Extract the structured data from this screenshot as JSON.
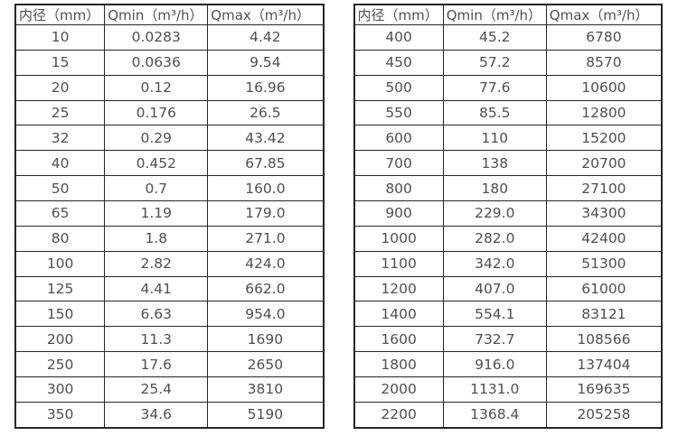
{
  "colors": {
    "background": "#ffffff",
    "border": "#262626",
    "text": "#4f4f4f"
  },
  "tables": [
    {
      "name": "small-diameters",
      "headers": [
        "内径（mm）",
        "Qmin（m³/h）",
        "Qmax（m³/h）"
      ],
      "rows": [
        [
          "10",
          "0.0283",
          "4.42"
        ],
        [
          "15",
          "0.0636",
          "9.54"
        ],
        [
          "20",
          "0.12",
          "16.96"
        ],
        [
          "25",
          "0.176",
          "26.5"
        ],
        [
          "32",
          "0.29",
          "43.42"
        ],
        [
          "40",
          "0.452",
          "67.85"
        ],
        [
          "50",
          "0.7",
          "160.0"
        ],
        [
          "65",
          "1.19",
          "179.0"
        ],
        [
          "80",
          "1.8",
          "271.0"
        ],
        [
          "100",
          "2.82",
          "424.0"
        ],
        [
          "125",
          "4.41",
          "662.0"
        ],
        [
          "150",
          "6.63",
          "954.0"
        ],
        [
          "200",
          "11.3",
          "1690"
        ],
        [
          "250",
          "17.6",
          "2650"
        ],
        [
          "300",
          "25.4",
          "3810"
        ],
        [
          "350",
          "34.6",
          "5190"
        ]
      ]
    },
    {
      "name": "large-diameters",
      "headers": [
        "内径（mm）",
        "Qmin（m³/h）",
        "Qmax（m³/h）"
      ],
      "rows": [
        [
          "400",
          "45.2",
          "6780"
        ],
        [
          "450",
          "57.2",
          "8570"
        ],
        [
          "500",
          "77.6",
          "10600"
        ],
        [
          "550",
          "85.5",
          "12800"
        ],
        [
          "600",
          "110",
          "15200"
        ],
        [
          "700",
          "138",
          "20700"
        ],
        [
          "800",
          "180",
          "27100"
        ],
        [
          "900",
          "229.0",
          "34300"
        ],
        [
          "1000",
          "282.0",
          "42400"
        ],
        [
          "1100",
          "342.0",
          "51300"
        ],
        [
          "1200",
          "407.0",
          "61000"
        ],
        [
          "1400",
          "554.1",
          "83121"
        ],
        [
          "1600",
          "732.7",
          "108566"
        ],
        [
          "1800",
          "916.0",
          "137404"
        ],
        [
          "2000",
          "1131.0",
          "169635"
        ],
        [
          "2200",
          "1368.4",
          "205258"
        ]
      ]
    }
  ]
}
